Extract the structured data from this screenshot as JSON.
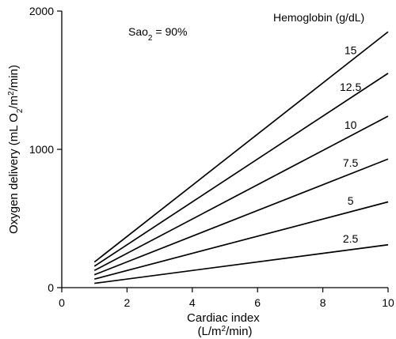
{
  "chart_data": {
    "type": "line",
    "title": "",
    "xlabel_line1": "Cardiac index",
    "xlabel_line2_pre": "(L/m",
    "xlabel_line2_sup": "2",
    "xlabel_line2_post": "/min)",
    "ylabel_pre": "Oxygen delivery (mL O",
    "ylabel_sub": "2",
    "ylabel_mid": "/m",
    "ylabel_sup": "2",
    "ylabel_post": "/min)",
    "xlim": [
      0,
      10
    ],
    "ylim": [
      0,
      2000
    ],
    "x_ticks": [
      0,
      2,
      4,
      6,
      8,
      10
    ],
    "y_ticks": [
      0,
      1000,
      2000
    ],
    "grid": false,
    "legend_title": "Hemoglobin (g/dL)",
    "annotation": {
      "pre": "Sao",
      "sub": "2",
      "post": " = 90%"
    },
    "series": [
      {
        "name": "15",
        "x": [
          1,
          10
        ],
        "y": [
          185,
          1850
        ]
      },
      {
        "name": "12.5",
        "x": [
          1,
          10
        ],
        "y": [
          155,
          1550
        ]
      },
      {
        "name": "10",
        "x": [
          1,
          10
        ],
        "y": [
          124,
          1240
        ]
      },
      {
        "name": "7.5",
        "x": [
          1,
          10
        ],
        "y": [
          93,
          930
        ]
      },
      {
        "name": "5",
        "x": [
          1,
          10
        ],
        "y": [
          62,
          620
        ]
      },
      {
        "name": "2.5",
        "x": [
          1,
          10
        ],
        "y": [
          31,
          310
        ]
      }
    ]
  }
}
